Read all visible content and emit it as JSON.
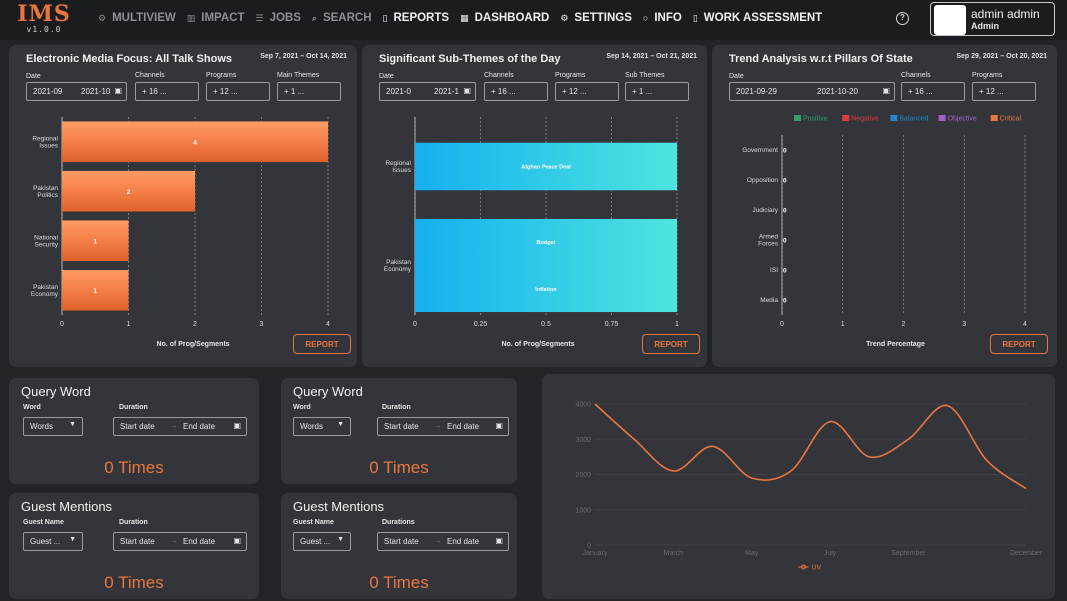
{
  "app": {
    "logo": "IMS",
    "version": "v1.0.0"
  },
  "nav": [
    {
      "label": "MULTIVIEW",
      "icon": "gear-icon",
      "glyph": "⚙",
      "bright": false
    },
    {
      "label": "IMPACT",
      "icon": "chart-icon",
      "glyph": "▥",
      "bright": false
    },
    {
      "label": "JOBS",
      "icon": "list-icon",
      "glyph": "☰",
      "bright": false
    },
    {
      "label": "SEARCH",
      "icon": "search-icon",
      "glyph": "⌕",
      "bright": false
    },
    {
      "label": "REPORTS",
      "icon": "file-icon",
      "glyph": "▯",
      "bright": true
    },
    {
      "label": "DASHBOARD",
      "icon": "dashboard-icon",
      "glyph": "▦",
      "bright": true
    },
    {
      "label": "SETTINGS",
      "icon": "gear-icon",
      "glyph": "⚙",
      "bright": true
    },
    {
      "label": "INFO",
      "icon": "info-icon",
      "glyph": "○",
      "bright": true
    },
    {
      "label": "WORK ASSESSMENT",
      "icon": "file-icon",
      "glyph": "▯",
      "bright": true
    }
  ],
  "help": "?",
  "user": {
    "name": "admin admin",
    "role": "Admin"
  },
  "colors": {
    "accent": "#e9763e",
    "panel": "#34353a",
    "bg": "#232428"
  },
  "card1": {
    "title": "Electronic Media Focus: All Talk Shows",
    "range": "Sep 7, 2021 – Oct 14, 2021",
    "labels": {
      "date": "Date",
      "channels": "Channels",
      "programs": "Programs",
      "themes": "Main Themes"
    },
    "date_from": "2021-09",
    "date_to": "2021-10",
    "channels": "+ 16 ...",
    "programs": "+ 12 ...",
    "themes": "+ 1 ...",
    "report": "REPORT"
  },
  "card2": {
    "title": "Significant Sub-Themes of the Day",
    "range": "Sep 14, 2021 – Oct 21, 2021",
    "labels": {
      "date": "Date",
      "channels": "Channels",
      "programs": "Programs",
      "themes": "Sub Themes"
    },
    "date_from": "2021-0",
    "date_to": "2021-1",
    "channels": "+ 16 ...",
    "programs": "+ 12 ...",
    "themes": "+ 1 ...",
    "report": "REPORT"
  },
  "card3": {
    "title": "Trend Analysis w.r.t Pillars Of State",
    "range": "Sep 29, 2021 – Oct 20, 2021",
    "labels": {
      "date": "Date",
      "channels": "Channels",
      "programs": "Programs"
    },
    "date_from": "2021-09-29",
    "date_to": "2021-10-20",
    "channels": "+ 16 ...",
    "programs": "+ 12 ...",
    "report": "REPORT"
  },
  "query": [
    {
      "title": "Query Word",
      "label1": "Word",
      "label2": "Duration",
      "select": "Words",
      "start": "Start date",
      "end": "End date",
      "times": "0 Times"
    },
    {
      "title": "Query Word",
      "label1": "Word",
      "label2": "Duration",
      "select": "Words",
      "start": "Start date",
      "end": "End date",
      "times": "0 Times"
    },
    {
      "title": "Guest Mentions",
      "label1": "Guest Name",
      "label2": "Duration",
      "select": "Guest ...",
      "start": "Start date",
      "end": "End date",
      "times": "0 Times"
    },
    {
      "title": "Guest Mentions",
      "label1": "Guest Name",
      "label2": "Durations",
      "select": "Guest ...",
      "start": "Start date",
      "end": "End date",
      "times": "0 Times"
    }
  ],
  "chart_data": [
    {
      "type": "bar",
      "orientation": "horizontal",
      "categories": [
        "Regional Issues",
        "Pakistan Politics",
        "National Security",
        "Pakistan Economy"
      ],
      "values": [
        4,
        2,
        1,
        1
      ],
      "xlabel": "No. of Prog/Segments",
      "xlim": [
        0,
        4
      ],
      "xticks": [
        0,
        1,
        2,
        3,
        4
      ],
      "color": "#f47f48",
      "grid": true
    },
    {
      "type": "bar",
      "orientation": "horizontal",
      "categories": [
        "Regional Issues",
        "Pakistan Economy"
      ],
      "bars": [
        {
          "category": "Regional Issues",
          "label": "Afghan Peace Deal",
          "value": 1
        },
        {
          "category": "Pakistan Economy",
          "label": "Budget",
          "value": 1
        },
        {
          "category": "Pakistan Economy",
          "label": "Inflation",
          "value": 1
        }
      ],
      "xlabel": "No. of Prog/Segments",
      "xlim": [
        0,
        1
      ],
      "xticks": [
        "0",
        "0.25",
        "0.5",
        "0.75",
        "1"
      ],
      "color": "#2bc8ee",
      "grid": true
    },
    {
      "type": "bar",
      "orientation": "horizontal",
      "categories": [
        "Government",
        "Opposition",
        "Judiciary",
        "Armed Forces",
        "ISI",
        "Media"
      ],
      "values": [
        0,
        0,
        0,
        0,
        0,
        0
      ],
      "legend": [
        {
          "name": "Positive",
          "color": "#2e9f6b"
        },
        {
          "name": "Negative",
          "color": "#e23b3b"
        },
        {
          "name": "Balanced",
          "color": "#1e88c8"
        },
        {
          "name": "Objective",
          "color": "#a061c9"
        },
        {
          "name": "Critical",
          "color": "#e9763e"
        }
      ],
      "legend_position": "top",
      "xlabel": "Trend Percentage",
      "xlim": [
        0,
        4
      ],
      "xticks": [
        0,
        1,
        2,
        3,
        4
      ],
      "grid": true
    },
    {
      "type": "line",
      "series": [
        {
          "name": "UV",
          "color": "#e9763e"
        }
      ],
      "x": [
        "January",
        "",
        "March",
        "",
        "May",
        "",
        "July",
        "",
        "September",
        "",
        "",
        "December"
      ],
      "points": [
        {
          "x": 0,
          "y": 4000
        },
        {
          "x": 1,
          "y": 3000
        },
        {
          "x": 2,
          "y": 2100
        },
        {
          "x": 3,
          "y": 2800
        },
        {
          "x": 4,
          "y": 1900
        },
        {
          "x": 5,
          "y": 2100
        },
        {
          "x": 6,
          "y": 3500
        },
        {
          "x": 7,
          "y": 2500
        },
        {
          "x": 8,
          "y": 3000
        },
        {
          "x": 9,
          "y": 3950
        },
        {
          "x": 10,
          "y": 2400
        },
        {
          "x": 11,
          "y": 1600
        }
      ],
      "x_labels": [
        "January",
        "March",
        "May",
        "July",
        "September",
        "December"
      ],
      "y_ticks": [
        0,
        1000,
        2000,
        3000,
        4000
      ],
      "ylim": [
        0,
        4000
      ],
      "legend": "UV",
      "legend_position": "bottom",
      "grid": true
    }
  ]
}
